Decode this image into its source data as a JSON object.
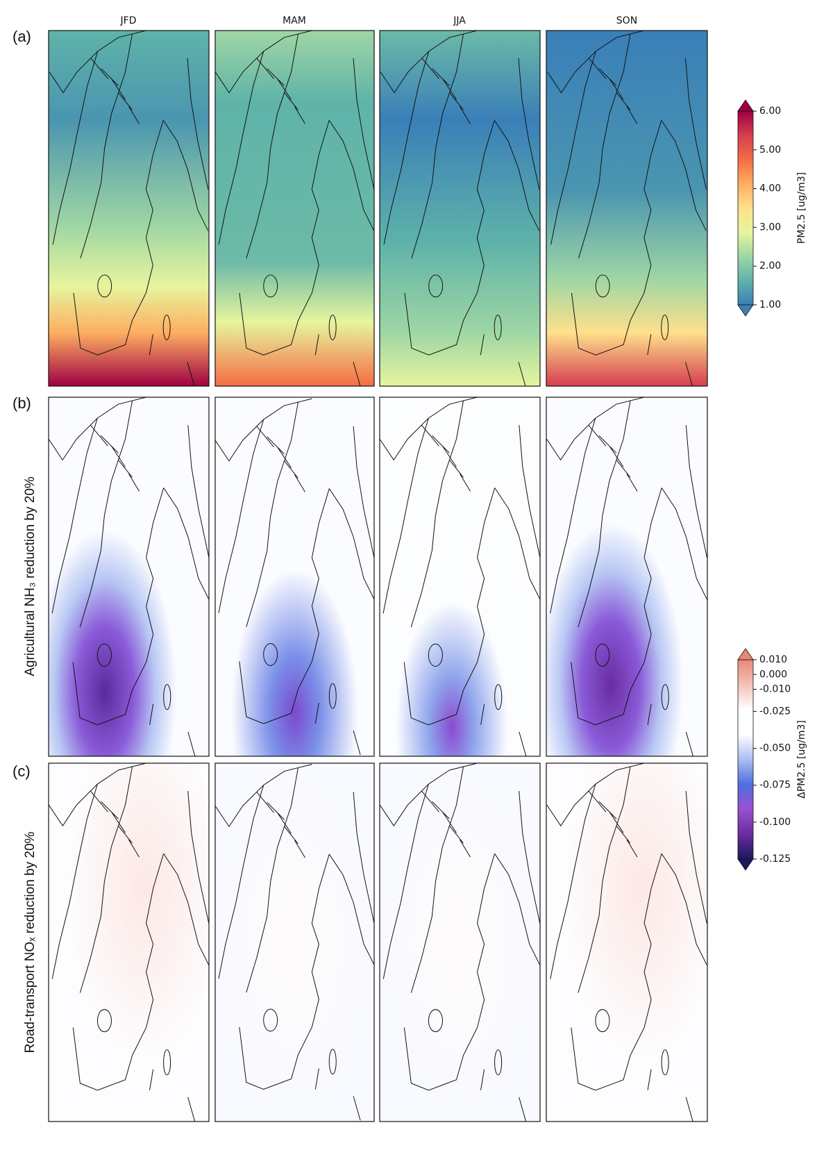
{
  "panel_labels": [
    "(a)",
    "(b)",
    "(c)"
  ],
  "columns": [
    "JFD",
    "MAM",
    "JJA",
    "SON"
  ],
  "row_labels": [
    "Agricultural NH₃ reduction by 20%",
    "Road-transport NOₓ reduction by 20%"
  ],
  "colorbars": [
    {
      "label": "PM2.5 [ug/m3]",
      "lim": [
        1,
        6
      ],
      "ticks": [
        {
          "value": 6,
          "label": "6.00"
        },
        {
          "value": 5,
          "label": "5.00"
        },
        {
          "value": 4,
          "label": "4.00"
        },
        {
          "value": 3,
          "label": "3.00"
        },
        {
          "value": 2,
          "label": "2.00"
        },
        {
          "value": 1,
          "label": "1.00"
        }
      ],
      "colors": [
        "#3a7fb8",
        "#5fb3a9",
        "#9fd6a4",
        "#e6f59d",
        "#fee08b",
        "#fdae61",
        "#f46d43",
        "#d53e4f",
        "#9e0142"
      ]
    },
    {
      "label": "ΔPM2.5 [ug/m3]",
      "lim": [
        -0.125,
        0.01
      ],
      "ticks": [
        {
          "value": 0.01,
          "label": "0.010"
        },
        {
          "value": 0,
          "label": "0.000"
        },
        {
          "value": -0.01,
          "label": "-0.010"
        },
        {
          "value": -0.025,
          "label": "-0.025"
        },
        {
          "value": -0.05,
          "label": "-0.050"
        },
        {
          "value": -0.075,
          "label": "-0.075"
        },
        {
          "value": -0.1,
          "label": "-0.100"
        },
        {
          "value": -0.125,
          "label": "-0.125"
        }
      ],
      "colors": [
        "#1a1a5e",
        "#6a2ca0",
        "#9b4fd0",
        "#4f6fe0",
        "#a9bff0",
        "#ffffff",
        "#ffffff",
        "#f5c0b8",
        "#e88878"
      ]
    }
  ]
}
